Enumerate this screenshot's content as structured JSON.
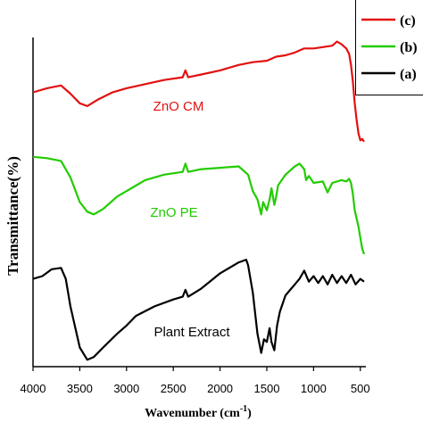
{
  "chart_data": {
    "type": "line",
    "xlabel": "Wavenumber (cm",
    "xlabel_sup": "-1",
    "xlabel_close": ")",
    "ylabel": "Transmittance(%)",
    "x_ticks": [
      "4000",
      "3500",
      "3000",
      "2500",
      "2000",
      "1500",
      "1000",
      "500"
    ],
    "xlim": [
      4000,
      450
    ],
    "x_reversed": true,
    "legend": [
      {
        "label": "(c)",
        "color": "#e31010"
      },
      {
        "label": "(b)",
        "color": "#22cc00"
      },
      {
        "label": "(a)",
        "color": "#000000"
      }
    ],
    "series": [
      {
        "name": "ZnO CM",
        "legend": "(c)",
        "color": "#e31010",
        "label_color": "#e31010",
        "annotation": "ZnO CM",
        "y_unit": "relative offset transmittance",
        "x": [
          4000,
          3850,
          3700,
          3600,
          3500,
          3420,
          3300,
          3150,
          3000,
          2800,
          2600,
          2400,
          2370,
          2340,
          2200,
          2000,
          1800,
          1650,
          1500,
          1400,
          1300,
          1200,
          1100,
          1000,
          900,
          800,
          750,
          700,
          650,
          620,
          600,
          580,
          560,
          540,
          520,
          500,
          480,
          460
        ],
        "y": [
          88.0,
          89.5,
          90.5,
          87.5,
          84.0,
          83.0,
          85.5,
          88.0,
          89.5,
          91.0,
          92.5,
          93.5,
          96.0,
          93.5,
          94.5,
          96.0,
          98.0,
          99.0,
          99.5,
          101.0,
          101.5,
          102.5,
          104.0,
          104.0,
          104.5,
          105.0,
          106.5,
          105.5,
          104.0,
          102.0,
          98.0,
          92.0,
          84.0,
          78.0,
          73.0,
          70.5,
          71.0,
          70.0
        ]
      },
      {
        "name": "ZnO PE",
        "legend": "(b)",
        "color": "#22cc00",
        "label_color": "#22cc00",
        "annotation": "ZnO PE",
        "y_unit": "relative offset transmittance",
        "x": [
          4000,
          3850,
          3700,
          3600,
          3500,
          3420,
          3350,
          3250,
          3100,
          3000,
          2900,
          2800,
          2600,
          2400,
          2370,
          2340,
          2200,
          2000,
          1800,
          1700,
          1650,
          1600,
          1560,
          1540,
          1500,
          1470,
          1450,
          1420,
          1400,
          1380,
          1300,
          1200,
          1150,
          1100,
          1080,
          1050,
          1000,
          900,
          850,
          800,
          700,
          650,
          620,
          600,
          580,
          560,
          540,
          520,
          500,
          480,
          460
        ],
        "y": [
          64.5,
          64.0,
          63.0,
          57.0,
          48.0,
          44.5,
          43.5,
          45.5,
          50.0,
          52.0,
          54.0,
          56.0,
          58.0,
          59.0,
          62.0,
          59.0,
          60.0,
          60.5,
          61.0,
          58.0,
          52.0,
          49.0,
          43.5,
          48.0,
          45.0,
          49.0,
          53.0,
          47.0,
          50.0,
          54.0,
          58.0,
          61.0,
          62.0,
          60.0,
          56.0,
          57.5,
          55.0,
          55.5,
          51.5,
          55.0,
          56.0,
          55.5,
          56.5,
          55.0,
          51.0,
          45.0,
          42.0,
          39.0,
          35.0,
          31.0,
          29.0
        ]
      },
      {
        "name": "Plant Extract",
        "legend": "(a)",
        "color": "#000000",
        "label_color": "#000000",
        "annotation": "Plant Extract",
        "y_unit": "relative offset transmittance",
        "x": [
          4000,
          3900,
          3800,
          3700,
          3650,
          3600,
          3500,
          3420,
          3350,
          3250,
          3100,
          3000,
          2900,
          2700,
          2500,
          2400,
          2370,
          2340,
          2200,
          2000,
          1800,
          1720,
          1700,
          1650,
          1600,
          1560,
          1530,
          1500,
          1470,
          1450,
          1420,
          1390,
          1360,
          1300,
          1250,
          1200,
          1150,
          1100,
          1050,
          1000,
          950,
          900,
          850,
          800,
          750,
          700,
          650,
          600,
          550,
          500,
          460
        ],
        "y": [
          20.0,
          21.0,
          23.5,
          24.0,
          20.0,
          10.0,
          -5.0,
          -9.5,
          -8.5,
          -5.0,
          0.0,
          3.0,
          6.5,
          10.0,
          12.5,
          13.5,
          16.0,
          13.5,
          16.5,
          22.0,
          26.0,
          27.0,
          25.0,
          15.0,
          0.0,
          -7.0,
          -2.0,
          -3.0,
          2.0,
          -3.0,
          -6.0,
          3.0,
          8.0,
          14.0,
          16.0,
          18.0,
          20.0,
          23.0,
          19.0,
          21.0,
          18.5,
          21.0,
          18.0,
          21.5,
          18.5,
          21.0,
          18.5,
          21.5,
          18.0,
          20.0,
          19.0
        ]
      }
    ],
    "grid": false,
    "legend_position": "top-right"
  }
}
